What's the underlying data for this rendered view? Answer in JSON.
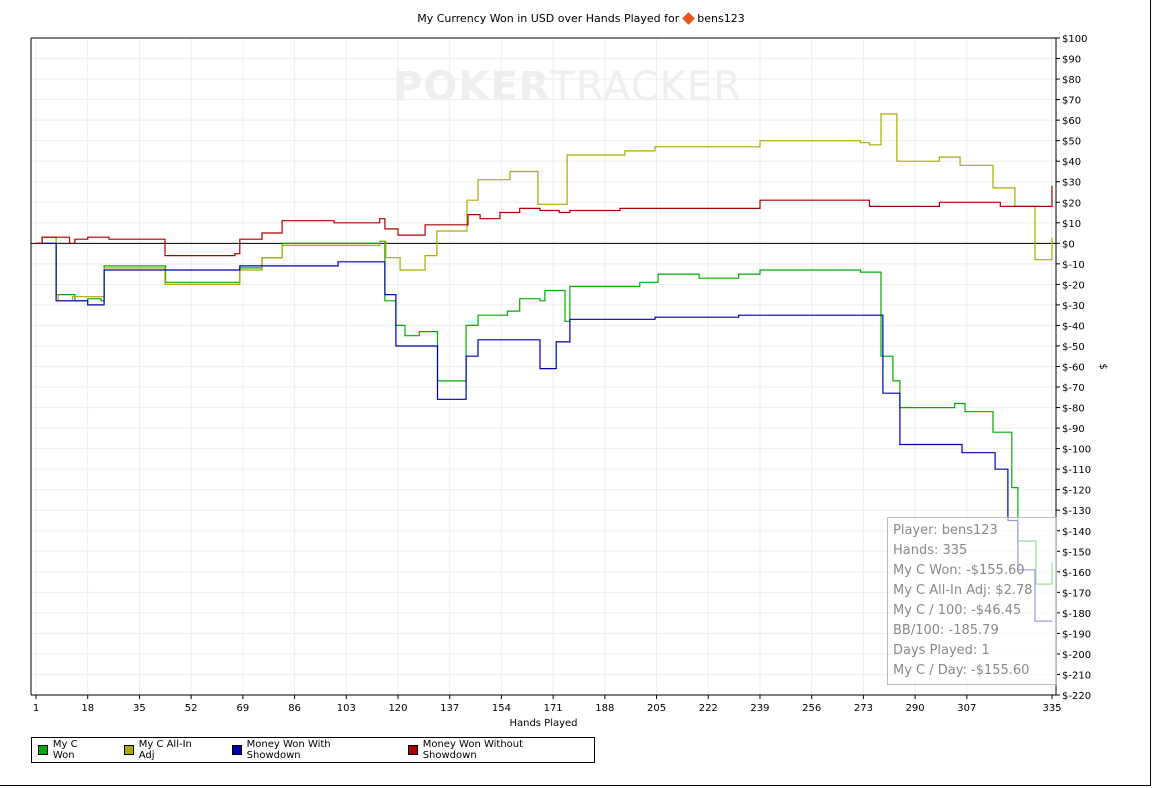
{
  "title": {
    "text": "My Currency Won in USD over Hands Played for",
    "player": "bens123"
  },
  "watermark": {
    "bold": "POKER",
    "light": "TRACKER"
  },
  "tooltip": [
    "Player: bens123",
    "Hands: 335",
    "My C Won: -$155.60",
    "My C All-In Adj: $2.78",
    "My C / 100: -$46.45",
    "BB/100: -185.79",
    "Days Played: 1",
    "My C / Day: -$155.60"
  ],
  "chart_data": {
    "type": "line",
    "title": "My Currency Won in USD over Hands Played for bens123",
    "xlabel": "Hands Played",
    "ylabel": "$",
    "xlim": [
      1,
      335
    ],
    "ylim": [
      -220,
      100
    ],
    "xticks": [
      1,
      18,
      35,
      52,
      69,
      86,
      103,
      120,
      137,
      154,
      171,
      188,
      205,
      222,
      239,
      256,
      273,
      290,
      307,
      335
    ],
    "yticks": [
      -220,
      -210,
      -200,
      -190,
      -180,
      -170,
      -160,
      -150,
      -140,
      -130,
      -120,
      -110,
      -100,
      -90,
      -80,
      -70,
      -60,
      -50,
      -40,
      -30,
      -20,
      -10,
      0,
      10,
      20,
      30,
      40,
      50,
      60,
      70,
      80,
      90,
      100
    ],
    "grid": true,
    "legend_position": "bottom-left",
    "series": [
      {
        "name": "My C Won",
        "color": "#00aa00",
        "step": true,
        "points": [
          [
            1,
            0
          ],
          [
            3,
            3
          ],
          [
            7.6,
            -25
          ],
          [
            13.8,
            -28
          ],
          [
            18,
            -27
          ],
          [
            22.4,
            -28
          ],
          [
            23.4,
            -11
          ],
          [
            43.6,
            -19
          ],
          [
            68,
            -12
          ],
          [
            75.3,
            -7
          ],
          [
            81.9,
            0
          ],
          [
            101,
            0
          ],
          [
            114,
            1
          ],
          [
            115.7,
            -28
          ],
          [
            119.3,
            -40
          ],
          [
            122.3,
            -45
          ],
          [
            127,
            -43
          ],
          [
            133,
            -67
          ],
          [
            142.4,
            -40
          ],
          [
            146.3,
            -35
          ],
          [
            156,
            -33
          ],
          [
            160,
            -27
          ],
          [
            166.7,
            -28
          ],
          [
            168.3,
            -23
          ],
          [
            174.9,
            -38
          ],
          [
            176.5,
            -21
          ],
          [
            199.5,
            -19
          ],
          [
            205.5,
            -15
          ],
          [
            219,
            -17
          ],
          [
            232,
            -15
          ],
          [
            239,
            -13
          ],
          [
            272,
            -14
          ],
          [
            278.8,
            -55
          ],
          [
            282.7,
            -67
          ],
          [
            285,
            -80
          ],
          [
            303,
            -78
          ],
          [
            306.4,
            -82
          ],
          [
            315.6,
            -92
          ],
          [
            321.8,
            -119
          ],
          [
            323.8,
            -145
          ],
          [
            329.7,
            -166
          ],
          [
            335,
            -155.6
          ]
        ]
      },
      {
        "name": "My C All-In Adj",
        "color": "#aaaa00",
        "step": true,
        "points": [
          [
            1,
            0
          ],
          [
            3,
            3
          ],
          [
            7.6,
            -25
          ],
          [
            8.3,
            -28
          ],
          [
            13,
            -26
          ],
          [
            23.4,
            -12
          ],
          [
            43.4,
            -20
          ],
          [
            68,
            -13
          ],
          [
            75.3,
            -7
          ],
          [
            81.9,
            -1
          ],
          [
            114,
            1
          ],
          [
            116,
            -7
          ],
          [
            120.7,
            -13
          ],
          [
            128.9,
            -6
          ],
          [
            132.8,
            6
          ],
          [
            142.7,
            21
          ],
          [
            146.3,
            31
          ],
          [
            156.8,
            35
          ],
          [
            166,
            19
          ],
          [
            175.6,
            43
          ],
          [
            194.6,
            45
          ],
          [
            204.5,
            47
          ],
          [
            239,
            50
          ],
          [
            272,
            49
          ],
          [
            275,
            48
          ],
          [
            278.8,
            63
          ],
          [
            284,
            40
          ],
          [
            298,
            42
          ],
          [
            304.8,
            38
          ],
          [
            315.6,
            27
          ],
          [
            322.8,
            18
          ],
          [
            329.4,
            -8
          ],
          [
            335,
            2.78
          ]
        ]
      },
      {
        "name": "Money Won With Showdown",
        "color": "#0000aa",
        "step": true,
        "points": [
          [
            1,
            0
          ],
          [
            7.6,
            -28
          ],
          [
            18,
            -30
          ],
          [
            23.4,
            -13
          ],
          [
            68,
            -11
          ],
          [
            100.3,
            -9
          ],
          [
            115.7,
            -25
          ],
          [
            119.3,
            -50
          ],
          [
            133,
            -76
          ],
          [
            142.4,
            -55
          ],
          [
            146.3,
            -47
          ],
          [
            166.7,
            -61
          ],
          [
            172,
            -48
          ],
          [
            176.5,
            -37
          ],
          [
            204.5,
            -36
          ],
          [
            232,
            -35
          ],
          [
            279.4,
            -73
          ],
          [
            285,
            -98
          ],
          [
            305.4,
            -102
          ],
          [
            316.3,
            -110
          ],
          [
            320.5,
            -135
          ],
          [
            323.8,
            -159
          ],
          [
            329.4,
            -184
          ],
          [
            335,
            -184
          ]
        ]
      },
      {
        "name": "Money Won Without Showdown",
        "color": "#aa0000",
        "step": true,
        "points": [
          [
            1,
            0
          ],
          [
            3,
            3
          ],
          [
            12,
            0
          ],
          [
            13.8,
            2
          ],
          [
            18,
            3
          ],
          [
            25,
            2
          ],
          [
            43.4,
            -6
          ],
          [
            66.4,
            -5
          ],
          [
            68,
            2
          ],
          [
            75.3,
            5
          ],
          [
            81.9,
            11
          ],
          [
            99,
            10
          ],
          [
            114,
            12
          ],
          [
            115.7,
            7
          ],
          [
            120,
            4
          ],
          [
            128.9,
            9
          ],
          [
            143,
            14
          ],
          [
            147,
            12
          ],
          [
            153.5,
            15
          ],
          [
            160,
            17
          ],
          [
            166.7,
            16
          ],
          [
            173,
            15
          ],
          [
            176.5,
            16
          ],
          [
            193,
            17
          ],
          [
            239,
            21
          ],
          [
            275,
            18
          ],
          [
            298,
            20
          ],
          [
            318,
            18
          ],
          [
            335,
            28
          ]
        ]
      }
    ]
  }
}
